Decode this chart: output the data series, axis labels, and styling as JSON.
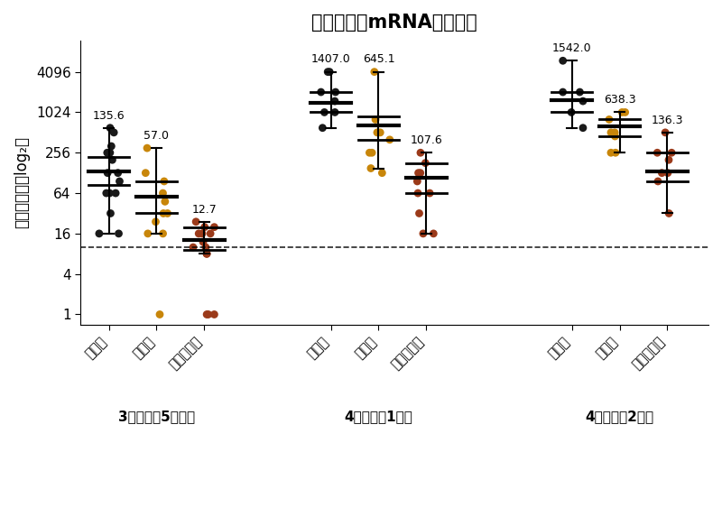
{
  "title": "ファイザーmRNAワクチン",
  "ylabel": "中和抜体価（log₂）",
  "dashed_line": 10,
  "groups": [
    {
      "label": "3回目から5ヶ月後",
      "strains": [
        {
          "name": "野生株",
          "color": "#1a1a1a",
          "gm_label": "135.6",
          "median": 135.6,
          "q1": 85,
          "q3": 220,
          "whisker_low": 16,
          "whisker_high": 600,
          "dots": [
            600,
            512,
            320,
            256,
            256,
            200,
            128,
            128,
            96,
            64,
            64,
            64,
            32,
            16,
            16
          ],
          "outliers": []
        },
        {
          "name": "デルタ",
          "color": "#c8860a",
          "gm_label": "57.0",
          "median": 57.0,
          "q1": 32,
          "q3": 96,
          "whisker_low": 16,
          "whisker_high": 300,
          "dots": [
            300,
            128,
            96,
            64,
            48,
            32,
            32,
            24,
            16,
            16
          ],
          "outliers": [
            1
          ]
        },
        {
          "name": "オミクロン",
          "color": "#9b3a1a",
          "gm_label": "12.7",
          "median": 12.7,
          "q1": 9,
          "q3": 20,
          "whisker_low": 8,
          "whisker_high": 24,
          "dots": [
            24,
            20,
            20,
            16,
            16,
            16,
            12,
            10,
            10,
            8,
            8
          ],
          "outliers": [
            1,
            1,
            1
          ]
        }
      ]
    },
    {
      "label": "4回目から1週間",
      "strains": [
        {
          "name": "野生株",
          "color": "#1a1a1a",
          "gm_label": "1407.0",
          "median": 1407.0,
          "q1": 1024,
          "q3": 2048,
          "whisker_low": 600,
          "whisker_high": 4096,
          "dots": [
            4096,
            4096,
            2048,
            2048,
            1500,
            1024,
            1024,
            600
          ],
          "outliers": []
        },
        {
          "name": "デルタ",
          "color": "#c8860a",
          "gm_label": "645.1",
          "median": 645.1,
          "q1": 400,
          "q3": 900,
          "whisker_low": 150,
          "whisker_high": 4096,
          "dots": [
            4096,
            800,
            512,
            512,
            400,
            256,
            256,
            150,
            128
          ],
          "outliers": []
        },
        {
          "name": "オミクロン",
          "color": "#9b3a1a",
          "gm_label": "107.6",
          "median": 107.6,
          "q1": 64,
          "q3": 180,
          "whisker_low": 16,
          "whisker_high": 256,
          "dots": [
            256,
            180,
            128,
            128,
            96,
            64,
            64,
            32,
            16
          ],
          "outliers": [
            16
          ]
        }
      ]
    },
    {
      "label": "4回目から2週間",
      "strains": [
        {
          "name": "野生株",
          "color": "#1a1a1a",
          "gm_label": "1542.0",
          "median": 1542.0,
          "q1": 1024,
          "q3": 2048,
          "whisker_low": 600,
          "whisker_high": 6000,
          "dots": [
            6000,
            2048,
            2048,
            1500,
            1024,
            600
          ],
          "outliers": []
        },
        {
          "name": "デルタ",
          "color": "#c8860a",
          "gm_label": "638.3",
          "median": 638.3,
          "q1": 450,
          "q3": 800,
          "whisker_low": 256,
          "whisker_high": 1024,
          "dots": [
            1024,
            1024,
            800,
            512,
            512,
            450,
            256,
            256
          ],
          "outliers": []
        },
        {
          "name": "オミクロン",
          "color": "#9b3a1a",
          "gm_label": "136.3",
          "median": 136.3,
          "q1": 96,
          "q3": 256,
          "whisker_low": 32,
          "whisker_high": 512,
          "dots": [
            512,
            256,
            256,
            200,
            128,
            128,
            96,
            32
          ],
          "outliers": []
        }
      ]
    }
  ],
  "group_labels": [
    "3回目から5ヶ月後",
    "4回目から1週間",
    "4回目から2週間"
  ],
  "yticks": [
    1,
    4,
    16,
    64,
    256,
    1024,
    4096
  ],
  "background": "#ffffff"
}
